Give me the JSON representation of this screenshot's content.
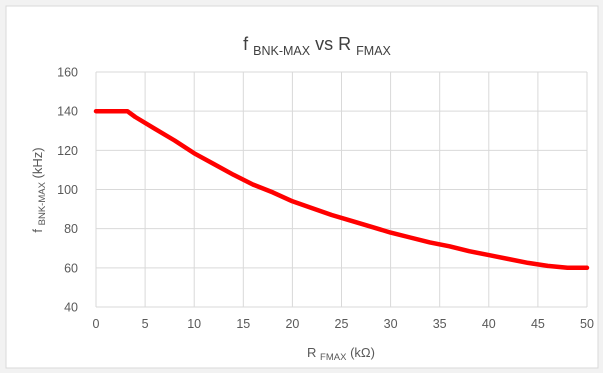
{
  "chart_data": {
    "type": "line",
    "title": "f",
    "title_subscript": "BNK-MAX",
    "title_suffix": " vs R",
    "title_suffix_subscript": "FMAX",
    "xlabel_main": "R",
    "xlabel_sub": "FMAX",
    "xlabel_unit": " (kΩ)",
    "ylabel_main": "f",
    "ylabel_sub": "BNK-MAX",
    "ylabel_unit": " (kHz)",
    "xlim": [
      0,
      50
    ],
    "ylim": [
      40,
      160
    ],
    "x_ticks": [
      "0",
      "5",
      "10",
      "15",
      "20",
      "25",
      "30",
      "35",
      "40",
      "45",
      "50"
    ],
    "y_ticks": [
      "40",
      "60",
      "80",
      "100",
      "120",
      "140",
      "160"
    ],
    "grid": true,
    "series": [
      {
        "color": "#ff0000",
        "x": [
          0,
          3.2,
          4,
          6,
          8,
          10,
          12,
          14,
          16,
          18,
          20,
          22,
          24,
          26,
          28,
          30,
          32,
          34,
          36,
          38,
          40,
          42,
          44,
          46,
          48,
          50
        ],
        "y": [
          140,
          140,
          137,
          131,
          125,
          118.5,
          113,
          107.5,
          102.5,
          98.5,
          94,
          90.5,
          87,
          84,
          81,
          78,
          75.5,
          73,
          71,
          68.5,
          66.5,
          64.5,
          62.5,
          61,
          60,
          60
        ]
      }
    ]
  }
}
